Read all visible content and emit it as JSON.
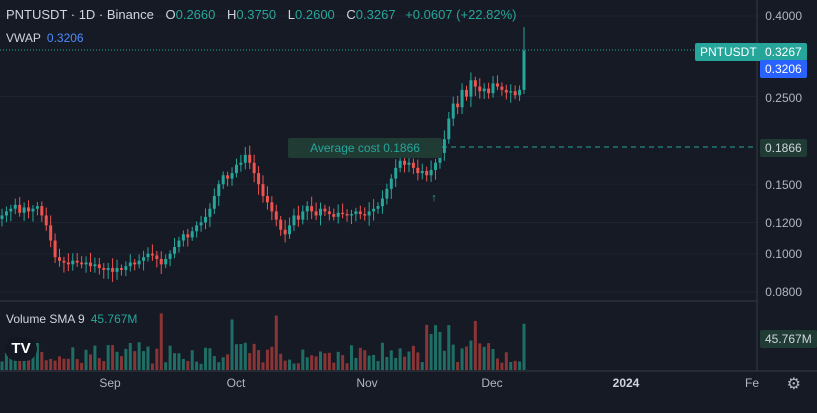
{
  "legend": {
    "symbol": "PNTUSDT · 1D · Binance",
    "o_label": "O",
    "o_val": "0.2660",
    "h_label": "H",
    "h_val": "0.3750",
    "l_label": "L",
    "l_val": "0.2600",
    "c_label": "C",
    "c_val": "0.3267",
    "change": "+0.0607 (+22.82%)"
  },
  "vwap": {
    "label": "VWAP",
    "value": "0.3206"
  },
  "volume_indicator": {
    "label": "Volume SMA 9",
    "value": "45.767M"
  },
  "price_axis_labels": [
    "0.4000",
    "0.2500",
    "0.1500",
    "0.1200",
    "0.1000",
    "0.0800"
  ],
  "tags": {
    "symbol_tag": "PNTUSDT",
    "last_price": "0.3267",
    "vwap_price": "0.3206",
    "avg_price": "0.1866",
    "volume": "45.767M"
  },
  "average_cost_label": "Average cost 0.1866",
  "time_axis": {
    "sep": "Sep",
    "oct": "Oct",
    "nov": "Nov",
    "dec": "Dec",
    "year": "2024",
    "feb": "Fe"
  },
  "logo_text": "TV",
  "colors": {
    "up": "#26a69a",
    "down": "#ef5350",
    "bg": "#161a25",
    "vwap": "#2962ff"
  },
  "chart_data": {
    "type": "candlestick",
    "symbol": "PNTUSDT",
    "interval": "1D",
    "scale": "log",
    "ylim": [
      0.075,
      0.42
    ],
    "closes": [
      0.125,
      0.128,
      0.13,
      0.133,
      0.127,
      0.131,
      0.128,
      0.13,
      0.132,
      0.125,
      0.118,
      0.108,
      0.098,
      0.096,
      0.095,
      0.094,
      0.096,
      0.095,
      0.094,
      0.095,
      0.093,
      0.094,
      0.092,
      0.091,
      0.092,
      0.09,
      0.092,
      0.091,
      0.093,
      0.095,
      0.094,
      0.096,
      0.098,
      0.1,
      0.099,
      0.097,
      0.094,
      0.097,
      0.1,
      0.104,
      0.108,
      0.112,
      0.11,
      0.114,
      0.118,
      0.12,
      0.124,
      0.13,
      0.14,
      0.15,
      0.158,
      0.155,
      0.16,
      0.168,
      0.17,
      0.178,
      0.17,
      0.16,
      0.15,
      0.14,
      0.135,
      0.128,
      0.122,
      0.115,
      0.112,
      0.118,
      0.125,
      0.122,
      0.128,
      0.132,
      0.128,
      0.125,
      0.13,
      0.128,
      0.126,
      0.124,
      0.127,
      0.126,
      0.125,
      0.126,
      0.128,
      0.126,
      0.125,
      0.128,
      0.13,
      0.132,
      0.138,
      0.146,
      0.155,
      0.165,
      0.172,
      0.168,
      0.17,
      0.165,
      0.16,
      0.162,
      0.158,
      0.163,
      0.17,
      0.18,
      0.195,
      0.22,
      0.24,
      0.235,
      0.26,
      0.25,
      0.275,
      0.265,
      0.258,
      0.262,
      0.255,
      0.27,
      0.265,
      0.26,
      0.256,
      0.258,
      0.252,
      0.26,
      0.3267
    ],
    "volume_sma": "45.767M",
    "average_cost": 0.1866,
    "vwap": 0.3206,
    "last": 0.3267
  }
}
